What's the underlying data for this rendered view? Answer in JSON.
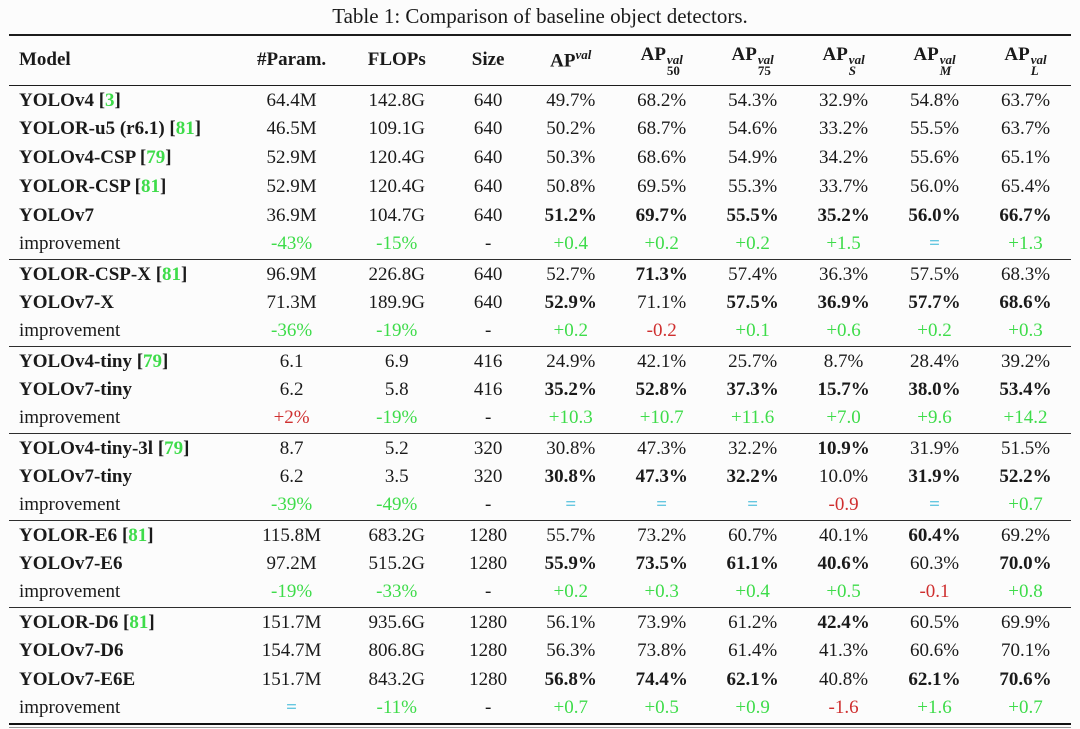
{
  "title": "Table 1: Comparison of baseline object detectors.",
  "colors": {
    "positive_improvement": "#3edc4a",
    "negative_improvement": "#cf2f2f",
    "equal_improvement": "#66c7e0",
    "text": "#1a1a1a",
    "background": "#fcfcfc"
  },
  "columns": [
    {
      "key": "model",
      "label": "Model"
    },
    {
      "key": "params",
      "label": "#Param."
    },
    {
      "key": "flops",
      "label": "FLOPs"
    },
    {
      "key": "size",
      "label": "Size"
    },
    {
      "key": "ap",
      "label": "AP",
      "sup": "val"
    },
    {
      "key": "ap50",
      "label": "AP",
      "sup": "val",
      "sub": "50"
    },
    {
      "key": "ap75",
      "label": "AP",
      "sup": "val",
      "sub": "75"
    },
    {
      "key": "ap_s",
      "label": "AP",
      "sup": "val",
      "sub": "S"
    },
    {
      "key": "ap_m",
      "label": "AP",
      "sup": "val",
      "sub": "M"
    },
    {
      "key": "ap_l",
      "label": "AP",
      "sup": "val",
      "sub": "L"
    }
  ],
  "groups": [
    {
      "rows": [
        {
          "model": "YOLOv4",
          "ref": "3",
          "cells": [
            {
              "t": "64.4M"
            },
            {
              "t": "142.8G"
            },
            {
              "t": "640"
            },
            {
              "t": "49.7%"
            },
            {
              "t": "68.2%"
            },
            {
              "t": "54.3%"
            },
            {
              "t": "32.9%"
            },
            {
              "t": "54.8%"
            },
            {
              "t": "63.7%"
            }
          ]
        },
        {
          "model": "YOLOR-u5 (r6.1)",
          "ref": "81",
          "cells": [
            {
              "t": "46.5M"
            },
            {
              "t": "109.1G"
            },
            {
              "t": "640"
            },
            {
              "t": "50.2%"
            },
            {
              "t": "68.7%"
            },
            {
              "t": "54.6%"
            },
            {
              "t": "33.2%"
            },
            {
              "t": "55.5%"
            },
            {
              "t": "63.7%"
            }
          ]
        },
        {
          "model": "YOLOv4-CSP",
          "ref": "79",
          "cells": [
            {
              "t": "52.9M"
            },
            {
              "t": "120.4G"
            },
            {
              "t": "640"
            },
            {
              "t": "50.3%"
            },
            {
              "t": "68.6%"
            },
            {
              "t": "54.9%"
            },
            {
              "t": "34.2%"
            },
            {
              "t": "55.6%"
            },
            {
              "t": "65.1%"
            }
          ]
        },
        {
          "model": "YOLOR-CSP",
          "ref": "81",
          "cells": [
            {
              "t": "52.9M"
            },
            {
              "t": "120.4G"
            },
            {
              "t": "640"
            },
            {
              "t": "50.8%"
            },
            {
              "t": "69.5%"
            },
            {
              "t": "55.3%"
            },
            {
              "t": "33.7%"
            },
            {
              "t": "56.0%"
            },
            {
              "t": "65.4%"
            }
          ]
        },
        {
          "model": "YOLOv7",
          "cells": [
            {
              "t": "36.9M"
            },
            {
              "t": "104.7G"
            },
            {
              "t": "640"
            },
            {
              "t": "51.2%",
              "b": true
            },
            {
              "t": "69.7%",
              "b": true
            },
            {
              "t": "55.5%",
              "b": true
            },
            {
              "t": "35.2%",
              "b": true
            },
            {
              "t": "56.0%",
              "b": true
            },
            {
              "t": "66.7%",
              "b": true
            }
          ]
        },
        {
          "type": "improvement",
          "model": "improvement",
          "cells": [
            {
              "t": "-43%",
              "c": "green"
            },
            {
              "t": "-15%",
              "c": "green"
            },
            {
              "t": "-"
            },
            {
              "t": "+0.4",
              "c": "green"
            },
            {
              "t": "+0.2",
              "c": "green"
            },
            {
              "t": "+0.2",
              "c": "green"
            },
            {
              "t": "+1.5",
              "c": "green"
            },
            {
              "t": "=",
              "c": "cyan"
            },
            {
              "t": "+1.3",
              "c": "green"
            }
          ]
        }
      ]
    },
    {
      "rows": [
        {
          "model": "YOLOR-CSP-X",
          "ref": "81",
          "cells": [
            {
              "t": "96.9M"
            },
            {
              "t": "226.8G"
            },
            {
              "t": "640"
            },
            {
              "t": "52.7%"
            },
            {
              "t": "71.3%",
              "b": true
            },
            {
              "t": "57.4%"
            },
            {
              "t": "36.3%"
            },
            {
              "t": "57.5%"
            },
            {
              "t": "68.3%"
            }
          ]
        },
        {
          "model": "YOLOv7-X",
          "cells": [
            {
              "t": "71.3M"
            },
            {
              "t": "189.9G"
            },
            {
              "t": "640"
            },
            {
              "t": "52.9%",
              "b": true
            },
            {
              "t": "71.1%"
            },
            {
              "t": "57.5%",
              "b": true
            },
            {
              "t": "36.9%",
              "b": true
            },
            {
              "t": "57.7%",
              "b": true
            },
            {
              "t": "68.6%",
              "b": true
            }
          ]
        },
        {
          "type": "improvement",
          "model": "improvement",
          "cells": [
            {
              "t": "-36%",
              "c": "green"
            },
            {
              "t": "-19%",
              "c": "green"
            },
            {
              "t": "-"
            },
            {
              "t": "+0.2",
              "c": "green"
            },
            {
              "t": "-0.2",
              "c": "red"
            },
            {
              "t": "+0.1",
              "c": "green"
            },
            {
              "t": "+0.6",
              "c": "green"
            },
            {
              "t": "+0.2",
              "c": "green"
            },
            {
              "t": "+0.3",
              "c": "green"
            }
          ]
        }
      ]
    },
    {
      "rows": [
        {
          "model": "YOLOv4-tiny",
          "ref": "79",
          "cells": [
            {
              "t": "6.1"
            },
            {
              "t": "6.9"
            },
            {
              "t": "416"
            },
            {
              "t": "24.9%"
            },
            {
              "t": "42.1%"
            },
            {
              "t": "25.7%"
            },
            {
              "t": "8.7%"
            },
            {
              "t": "28.4%"
            },
            {
              "t": "39.2%"
            }
          ]
        },
        {
          "model": "YOLOv7-tiny",
          "cells": [
            {
              "t": "6.2"
            },
            {
              "t": "5.8"
            },
            {
              "t": "416"
            },
            {
              "t": "35.2%",
              "b": true
            },
            {
              "t": "52.8%",
              "b": true
            },
            {
              "t": "37.3%",
              "b": true
            },
            {
              "t": "15.7%",
              "b": true
            },
            {
              "t": "38.0%",
              "b": true
            },
            {
              "t": "53.4%",
              "b": true
            }
          ]
        },
        {
          "type": "improvement",
          "model": "improvement",
          "cells": [
            {
              "t": "+2%",
              "c": "red"
            },
            {
              "t": "-19%",
              "c": "green"
            },
            {
              "t": "-"
            },
            {
              "t": "+10.3",
              "c": "green"
            },
            {
              "t": "+10.7",
              "c": "green"
            },
            {
              "t": "+11.6",
              "c": "green"
            },
            {
              "t": "+7.0",
              "c": "green"
            },
            {
              "t": "+9.6",
              "c": "green"
            },
            {
              "t": "+14.2",
              "c": "green"
            }
          ]
        }
      ]
    },
    {
      "rows": [
        {
          "model": "YOLOv4-tiny-3l",
          "ref": "79",
          "cells": [
            {
              "t": "8.7"
            },
            {
              "t": "5.2"
            },
            {
              "t": "320"
            },
            {
              "t": "30.8%"
            },
            {
              "t": "47.3%"
            },
            {
              "t": "32.2%"
            },
            {
              "t": "10.9%",
              "b": true
            },
            {
              "t": "31.9%"
            },
            {
              "t": "51.5%"
            }
          ]
        },
        {
          "model": "YOLOv7-tiny",
          "cells": [
            {
              "t": "6.2"
            },
            {
              "t": "3.5"
            },
            {
              "t": "320"
            },
            {
              "t": "30.8%",
              "b": true
            },
            {
              "t": "47.3%",
              "b": true
            },
            {
              "t": "32.2%",
              "b": true
            },
            {
              "t": "10.0%"
            },
            {
              "t": "31.9%",
              "b": true
            },
            {
              "t": "52.2%",
              "b": true
            }
          ]
        },
        {
          "type": "improvement",
          "model": "improvement",
          "cells": [
            {
              "t": "-39%",
              "c": "green"
            },
            {
              "t": "-49%",
              "c": "green"
            },
            {
              "t": "-"
            },
            {
              "t": "=",
              "c": "cyan"
            },
            {
              "t": "=",
              "c": "cyan"
            },
            {
              "t": "=",
              "c": "cyan"
            },
            {
              "t": "-0.9",
              "c": "red"
            },
            {
              "t": "=",
              "c": "cyan"
            },
            {
              "t": "+0.7",
              "c": "green"
            }
          ]
        }
      ]
    },
    {
      "rows": [
        {
          "model": "YOLOR-E6",
          "ref": "81",
          "cells": [
            {
              "t": "115.8M"
            },
            {
              "t": "683.2G"
            },
            {
              "t": "1280"
            },
            {
              "t": "55.7%"
            },
            {
              "t": "73.2%"
            },
            {
              "t": "60.7%"
            },
            {
              "t": "40.1%"
            },
            {
              "t": "60.4%",
              "b": true
            },
            {
              "t": "69.2%"
            }
          ]
        },
        {
          "model": "YOLOv7-E6",
          "cells": [
            {
              "t": "97.2M"
            },
            {
              "t": "515.2G"
            },
            {
              "t": "1280"
            },
            {
              "t": "55.9%",
              "b": true
            },
            {
              "t": "73.5%",
              "b": true
            },
            {
              "t": "61.1%",
              "b": true
            },
            {
              "t": "40.6%",
              "b": true
            },
            {
              "t": "60.3%"
            },
            {
              "t": "70.0%",
              "b": true
            }
          ]
        },
        {
          "type": "improvement",
          "model": "improvement",
          "cells": [
            {
              "t": "-19%",
              "c": "green"
            },
            {
              "t": "-33%",
              "c": "green"
            },
            {
              "t": "-"
            },
            {
              "t": "+0.2",
              "c": "green"
            },
            {
              "t": "+0.3",
              "c": "green"
            },
            {
              "t": "+0.4",
              "c": "green"
            },
            {
              "t": "+0.5",
              "c": "green"
            },
            {
              "t": "-0.1",
              "c": "red"
            },
            {
              "t": "+0.8",
              "c": "green"
            }
          ]
        }
      ]
    },
    {
      "rows": [
        {
          "model": "YOLOR-D6",
          "ref": "81",
          "cells": [
            {
              "t": "151.7M"
            },
            {
              "t": "935.6G"
            },
            {
              "t": "1280"
            },
            {
              "t": "56.1%"
            },
            {
              "t": "73.9%"
            },
            {
              "t": "61.2%"
            },
            {
              "t": "42.4%",
              "b": true
            },
            {
              "t": "60.5%"
            },
            {
              "t": "69.9%"
            }
          ]
        },
        {
          "model": "YOLOv7-D6",
          "cells": [
            {
              "t": "154.7M"
            },
            {
              "t": "806.8G"
            },
            {
              "t": "1280"
            },
            {
              "t": "56.3%"
            },
            {
              "t": "73.8%"
            },
            {
              "t": "61.4%"
            },
            {
              "t": "41.3%"
            },
            {
              "t": "60.6%"
            },
            {
              "t": "70.1%"
            }
          ]
        },
        {
          "model": "YOLOv7-E6E",
          "cells": [
            {
              "t": "151.7M"
            },
            {
              "t": "843.2G"
            },
            {
              "t": "1280"
            },
            {
              "t": "56.8%",
              "b": true
            },
            {
              "t": "74.4%",
              "b": true
            },
            {
              "t": "62.1%",
              "b": true
            },
            {
              "t": "40.8%"
            },
            {
              "t": "62.1%",
              "b": true
            },
            {
              "t": "70.6%",
              "b": true
            }
          ]
        },
        {
          "type": "improvement",
          "model": "improvement",
          "cells": [
            {
              "t": "=",
              "c": "cyan"
            },
            {
              "t": "-11%",
              "c": "green"
            },
            {
              "t": "-"
            },
            {
              "t": "+0.7",
              "c": "green"
            },
            {
              "t": "+0.5",
              "c": "green"
            },
            {
              "t": "+0.9",
              "c": "green"
            },
            {
              "t": "-1.6",
              "c": "red"
            },
            {
              "t": "+1.6",
              "c": "green"
            },
            {
              "t": "+0.7",
              "c": "green"
            }
          ]
        }
      ]
    }
  ]
}
